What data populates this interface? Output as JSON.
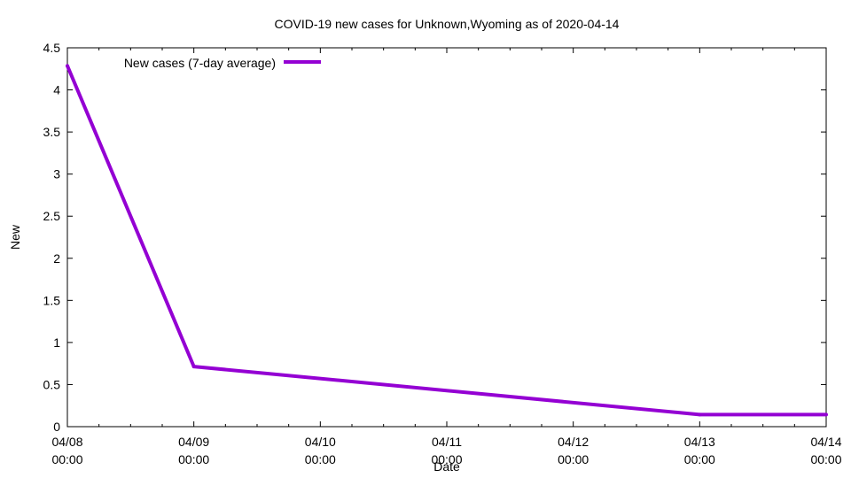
{
  "chart_data": {
    "type": "line",
    "title": "COVID-19 new cases for Unknown,Wyoming as of 2020-04-14",
    "xlabel": "Date",
    "ylabel": "New",
    "ylim": [
      0,
      4.5
    ],
    "yticks": [
      "0",
      "0.5",
      "1",
      "1.5",
      "2",
      "2.5",
      "3",
      "3.5",
      "4",
      "4.5"
    ],
    "xticks": [
      {
        "date": "04/08",
        "time": "00:00"
      },
      {
        "date": "04/09",
        "time": "00:00"
      },
      {
        "date": "04/10",
        "time": "00:00"
      },
      {
        "date": "04/11",
        "time": "00:00"
      },
      {
        "date": "04/12",
        "time": "00:00"
      },
      {
        "date": "04/13",
        "time": "00:00"
      },
      {
        "date": "04/14",
        "time": "00:00"
      }
    ],
    "grid": false,
    "legend_position": "top-left",
    "series": [
      {
        "name": "New cases (7-day average)",
        "color": "#9400d3",
        "x": [
          "2020-04-08",
          "2020-04-09",
          "2020-04-13",
          "2020-04-14"
        ],
        "y": [
          4.286,
          0.714,
          0.143,
          0.143
        ]
      }
    ]
  }
}
